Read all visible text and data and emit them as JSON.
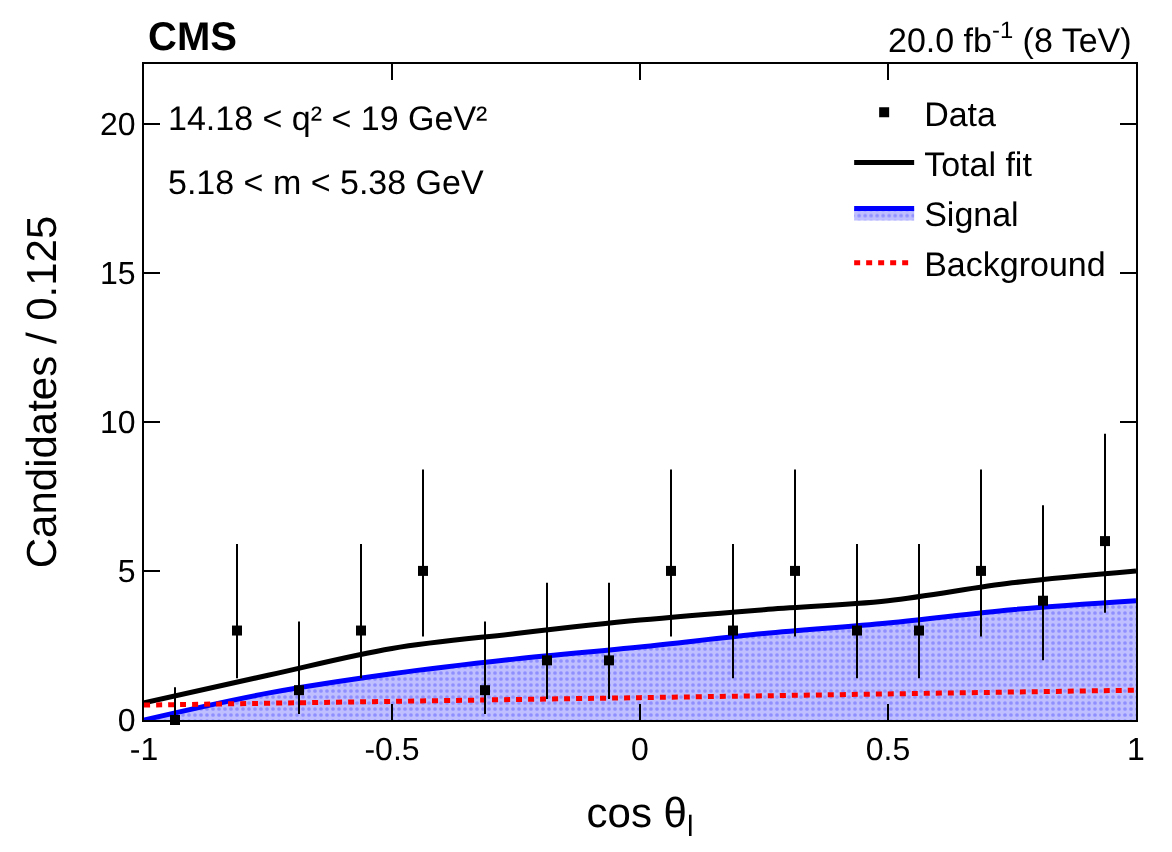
{
  "chart_data": {
    "type": "line",
    "title": "CMS",
    "subtitle": "20.0 fb$^{-1}$ (8 TeV)",
    "xlabel": "cos θ$_{l}$",
    "ylabel": "Candidates / 0.125",
    "annotations": [
      "14.18 < q² < 19 GeV²",
      "5.18 < m < 5.38 GeV"
    ],
    "xlim": [
      -1,
      1
    ],
    "xticks": [
      -1,
      -0.5,
      0,
      0.5,
      1
    ],
    "ylim": [
      0,
      22
    ],
    "yticks": [
      0,
      5,
      10,
      15,
      20
    ],
    "legend": "top right",
    "series": [
      {
        "name": "Data",
        "type": "scatter",
        "marker": "square",
        "color": "#000000",
        "x": [
          -0.9375,
          -0.8125,
          -0.6875,
          -0.5625,
          -0.4375,
          -0.3125,
          -0.1875,
          -0.0625,
          0.0625,
          0.1875,
          0.3125,
          0.4375,
          0.5625,
          0.6875,
          0.8125,
          0.9375
        ],
        "values": [
          0,
          3,
          1,
          3,
          5,
          1,
          2,
          2,
          5,
          3,
          5,
          3,
          3,
          5,
          4,
          6
        ],
        "errors": [
          [
            0,
            1.1
          ],
          [
            1.4,
            5.9
          ],
          [
            0.2,
            3.3
          ],
          [
            1.4,
            5.9
          ],
          [
            2.8,
            8.4
          ],
          [
            0.2,
            3.3
          ],
          [
            0.7,
            4.6
          ],
          [
            0.7,
            4.6
          ],
          [
            2.8,
            8.4
          ],
          [
            1.4,
            5.9
          ],
          [
            2.8,
            8.4
          ],
          [
            1.4,
            5.9
          ],
          [
            1.4,
            5.9
          ],
          [
            2.8,
            8.4
          ],
          [
            2.0,
            7.2
          ],
          [
            3.6,
            9.6
          ]
        ]
      },
      {
        "name": "Total fit",
        "line_style": "solid",
        "color": "#000000",
        "x": [
          -1,
          -0.75,
          -0.5,
          -0.25,
          0,
          0.25,
          0.5,
          0.75,
          1
        ],
        "values": [
          0.58,
          1.5,
          2.4,
          2.9,
          3.35,
          3.7,
          4.0,
          4.6,
          5.0
        ]
      },
      {
        "name": "Signal",
        "type": "area",
        "color": "#0000ff",
        "x": [
          -1,
          -0.75,
          -0.5,
          -0.25,
          0,
          0.25,
          0.5,
          0.75,
          1
        ],
        "values": [
          0,
          0.9,
          1.55,
          2.05,
          2.45,
          2.9,
          3.25,
          3.7,
          4.0
        ]
      },
      {
        "name": "Background",
        "line_style": "dotted",
        "color": "#ff0000",
        "x": [
          -1,
          0,
          1
        ],
        "values": [
          0.5,
          0.75,
          1.0
        ]
      }
    ]
  }
}
